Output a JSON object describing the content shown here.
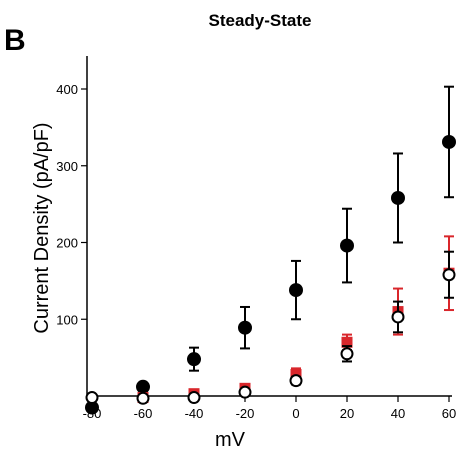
{
  "panel_label": "B",
  "chart_data": {
    "type": "scatter",
    "title": "Steady-State",
    "xlabel": "mV",
    "ylabel": "Current Density (pA/pF)",
    "xlim": [
      -80,
      60
    ],
    "ylim": [
      -20,
      450
    ],
    "x_ticks": [
      -80,
      -60,
      -40,
      -20,
      0,
      20,
      40,
      60
    ],
    "y_ticks": [
      100,
      200,
      300,
      400
    ],
    "grid": false,
    "series": [
      {
        "marker": "filled-circle",
        "color": "#000000",
        "x": [
          -80,
          -60,
          -40,
          -20,
          0,
          20,
          40,
          60
        ],
        "y": [
          -15,
          12,
          48,
          89,
          138,
          196,
          258,
          331
        ],
        "err": [
          5,
          5,
          15,
          27,
          38,
          48,
          58,
          72
        ]
      },
      {
        "marker": "filled-square",
        "color": "#d9262b",
        "x": [
          -60,
          -40,
          -20,
          0,
          20,
          40,
          60
        ],
        "y": [
          -2,
          3,
          10,
          28,
          70,
          110,
          160
        ],
        "err": [
          3,
          4,
          5,
          8,
          10,
          30,
          48
        ]
      },
      {
        "marker": "open-circle",
        "color": "#000000",
        "x": [
          -80,
          -60,
          -40,
          -20,
          0,
          20,
          40,
          60
        ],
        "y": [
          -2,
          -3,
          -2,
          5,
          20,
          55,
          103,
          158
        ],
        "err": [
          2,
          2,
          2,
          3,
          5,
          10,
          20,
          30
        ]
      }
    ]
  }
}
